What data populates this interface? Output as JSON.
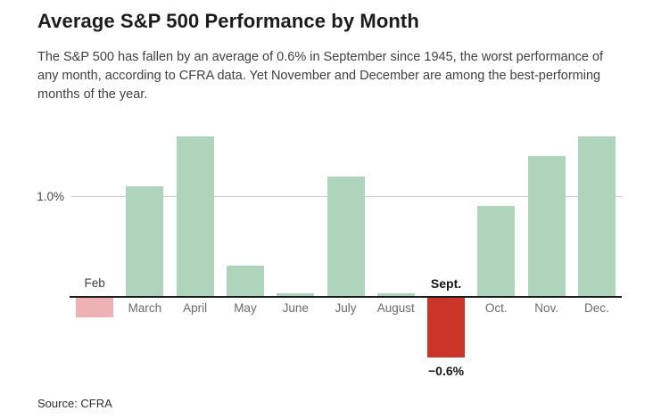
{
  "header": {
    "title": "Average S&P 500 Performance by Month",
    "subtitle": "The S&P 500 has fallen by an average of 0.6% in September since 1945, the worst performance of any month, according to CFRA data. Yet November and December are among the best-performing months of the year."
  },
  "chart_data": {
    "type": "bar",
    "title": "Average S&P 500 Performance by Month",
    "categories": [
      "Feb",
      "March",
      "April",
      "May",
      "June",
      "July",
      "August",
      "Sept.",
      "Oct.",
      "Nov.",
      "Dec."
    ],
    "values": [
      -0.2,
      1.1,
      1.6,
      0.3,
      0.03,
      1.2,
      0.03,
      -0.6,
      0.9,
      1.4,
      1.6
    ],
    "unit": "%",
    "xlabel": "",
    "ylabel": "",
    "ylim": [
      -0.8,
      1.75
    ],
    "grid": "single-horizontal-line",
    "legend": "none",
    "axis": {
      "gridline_value": 1.0,
      "gridline_label": "1.0%"
    },
    "bar_colors": [
      "#eeb2b5",
      "#aed5bc",
      "#aed5bc",
      "#aed5bc",
      "#aed5bc",
      "#aed5bc",
      "#aed5bc",
      "#cb3428",
      "#aed5bc",
      "#aed5bc",
      "#aed5bc"
    ],
    "colors": {
      "positive": "#aed5bc",
      "negative_muted": "#eeb2b5",
      "negative_emphasis": "#cb3428",
      "axis": "#1a1a1a",
      "gridline": "#cbcbcb"
    },
    "emphasized_category": "Sept.",
    "annotations": [
      {
        "category": "Sept.",
        "text": "−0.6%"
      }
    ]
  },
  "footer": {
    "source_label": "Source: CFRA"
  }
}
